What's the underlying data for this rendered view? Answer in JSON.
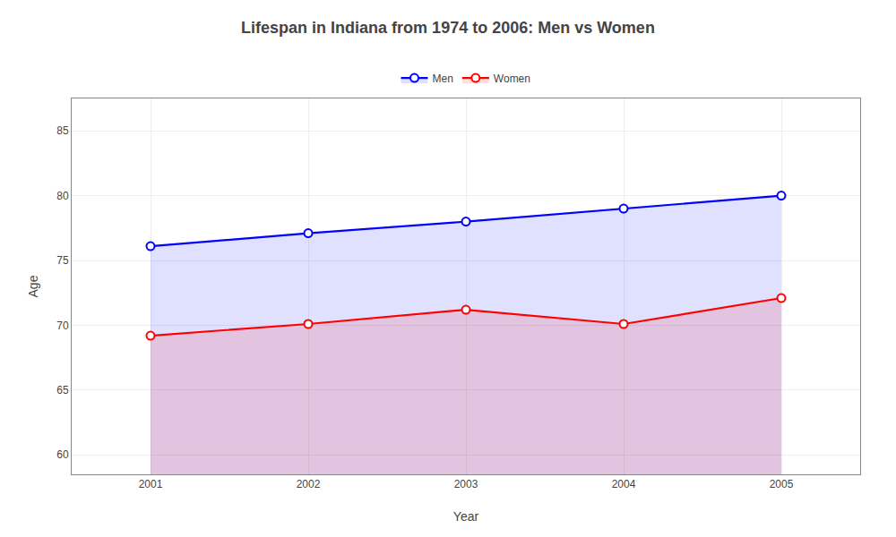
{
  "chart_data": {
    "type": "line",
    "title": "Lifespan in Indiana from 1974 to 2006: Men vs Women",
    "x_label": "Year",
    "y_label": "Age",
    "x": [
      2001,
      2002,
      2003,
      2004,
      2005
    ],
    "series": [
      {
        "name": "Men",
        "color": "#0000ff",
        "values": [
          76.1,
          77.1,
          78.0,
          79.0,
          80.0
        ]
      },
      {
        "name": "Women",
        "color": "#ff0000",
        "values": [
          69.2,
          70.1,
          71.2,
          70.1,
          72.1
        ]
      }
    ],
    "xlim": [
      2000.5,
      2005.5
    ],
    "xticks": [
      2001,
      2002,
      2003,
      2004,
      2005
    ],
    "ylim": [
      58.5,
      87.5
    ],
    "yticks": [
      60,
      65,
      70,
      75,
      80,
      85
    ],
    "grid": true,
    "legend": "top",
    "marker": "circle"
  }
}
